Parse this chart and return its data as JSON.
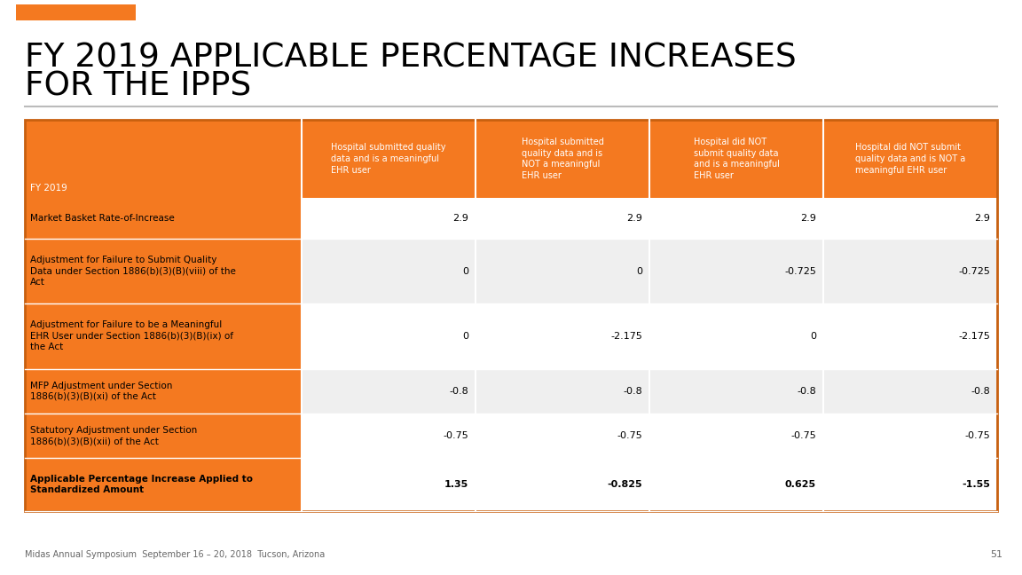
{
  "title_line1": "FY 2019 APPLICABLE PERCENTAGE INCREASES",
  "title_line2": "FOR THE IPPS",
  "title_color": "#000000",
  "title_fontsize": 28,
  "bg_color": "#ffffff",
  "orange_color": "#F47920",
  "orange_dark": "#C86010",
  "light_gray": "#efefef",
  "white": "#ffffff",
  "footer_text": "Midas Annual Symposium  September 16 – 20, 2018  Tucson, Arizona",
  "page_number": "51",
  "header_row": [
    "FY 2019",
    "Hospital submitted quality\ndata and is a meaningful\nEHR user",
    "Hospital submitted\nquality data and is\nNOT a meaningful\nEHR user",
    "Hospital did NOT\nsubmit quality data\nand is a meaningful\nEHR user",
    "Hospital did NOT submit\nquality data and is NOT a\nmeaningful EHR user"
  ],
  "rows": [
    {
      "label": "Market Basket Rate-of-Increase",
      "values": [
        "2.9",
        "2.9",
        "2.9",
        "2.9"
      ],
      "bold": false
    },
    {
      "label": "Adjustment for Failure to Submit Quality\nData under Section 1886(b)(3)(B)(viii) of the\nAct",
      "values": [
        "0",
        "0",
        "-0.725",
        "-0.725"
      ],
      "bold": false
    },
    {
      "label": "Adjustment for Failure to be a Meaningful\nEHR User under Section 1886(b)(3)(B)(ix) of\nthe Act",
      "values": [
        "0",
        "-2.175",
        "0",
        "-2.175"
      ],
      "bold": false
    },
    {
      "label": "MFP Adjustment under Section\n1886(b)(3)(B)(xi) of the Act",
      "values": [
        "-0.8",
        "-0.8",
        "-0.8",
        "-0.8"
      ],
      "bold": false
    },
    {
      "label": "Statutory Adjustment under Section\n1886(b)(3)(B)(xii) of the Act",
      "values": [
        "-0.75",
        "-0.75",
        "-0.75",
        "-0.75"
      ],
      "bold": false
    },
    {
      "label": "Applicable Percentage Increase Applied to\nStandardized Amount",
      "values": [
        "1.35",
        "-0.825",
        "0.625",
        "-1.55"
      ],
      "bold": true
    }
  ]
}
